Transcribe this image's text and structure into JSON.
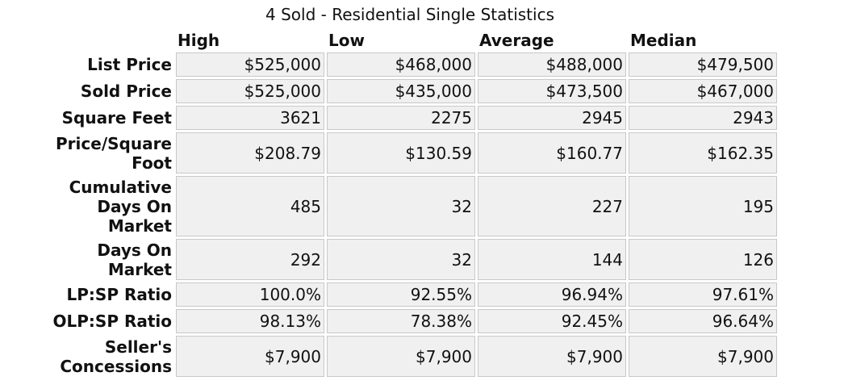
{
  "title": "4 Sold - Residential Single Statistics",
  "columns": [
    "High",
    "Low",
    "Average",
    "Median"
  ],
  "rows": [
    {
      "label": "List Price",
      "values": [
        "$525,000",
        "$468,000",
        "$488,000",
        "$479,500"
      ]
    },
    {
      "label": "Sold Price",
      "values": [
        "$525,000",
        "$435,000",
        "$473,500",
        "$467,000"
      ]
    },
    {
      "label": "Square Feet",
      "values": [
        "3621",
        "2275",
        "2945",
        "2943"
      ]
    },
    {
      "label": "Price/Square Foot",
      "values": [
        "$208.79",
        "$130.59",
        "$160.77",
        "$162.35"
      ]
    },
    {
      "label": "Cumulative Days On Market",
      "values": [
        "485",
        "32",
        "227",
        "195"
      ]
    },
    {
      "label": "Days On Market",
      "values": [
        "292",
        "32",
        "144",
        "126"
      ]
    },
    {
      "label": "LP:SP Ratio",
      "values": [
        "100.0%",
        "92.55%",
        "96.94%",
        "97.61%"
      ]
    },
    {
      "label": "OLP:SP Ratio",
      "values": [
        "98.13%",
        "78.38%",
        "92.45%",
        "96.64%"
      ]
    },
    {
      "label": "Seller's Concessions",
      "values": [
        "$7,900",
        "$7,900",
        "$7,900",
        "$7,900"
      ]
    }
  ]
}
